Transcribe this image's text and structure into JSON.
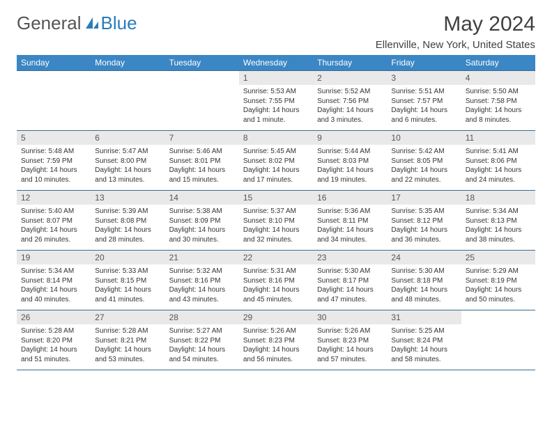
{
  "brand": {
    "general": "General",
    "blue": "Blue"
  },
  "title": "May 2024",
  "location": "Ellenville, New York, United States",
  "colors": {
    "header_bg": "#3b86c4",
    "header_text": "#ffffff",
    "daynum_bg": "#e9e9e9",
    "row_border": "#3b6a8f",
    "logo_blue": "#2a7cb8",
    "body_bg": "#ffffff"
  },
  "weekday_labels": [
    "Sunday",
    "Monday",
    "Tuesday",
    "Wednesday",
    "Thursday",
    "Friday",
    "Saturday"
  ],
  "weeks": [
    [
      null,
      null,
      null,
      {
        "n": "1",
        "sr": "5:53 AM",
        "ss": "7:55 PM",
        "dl": "14 hours and 1 minute."
      },
      {
        "n": "2",
        "sr": "5:52 AM",
        "ss": "7:56 PM",
        "dl": "14 hours and 3 minutes."
      },
      {
        "n": "3",
        "sr": "5:51 AM",
        "ss": "7:57 PM",
        "dl": "14 hours and 6 minutes."
      },
      {
        "n": "4",
        "sr": "5:50 AM",
        "ss": "7:58 PM",
        "dl": "14 hours and 8 minutes."
      }
    ],
    [
      {
        "n": "5",
        "sr": "5:48 AM",
        "ss": "7:59 PM",
        "dl": "14 hours and 10 minutes."
      },
      {
        "n": "6",
        "sr": "5:47 AM",
        "ss": "8:00 PM",
        "dl": "14 hours and 13 minutes."
      },
      {
        "n": "7",
        "sr": "5:46 AM",
        "ss": "8:01 PM",
        "dl": "14 hours and 15 minutes."
      },
      {
        "n": "8",
        "sr": "5:45 AM",
        "ss": "8:02 PM",
        "dl": "14 hours and 17 minutes."
      },
      {
        "n": "9",
        "sr": "5:44 AM",
        "ss": "8:03 PM",
        "dl": "14 hours and 19 minutes."
      },
      {
        "n": "10",
        "sr": "5:42 AM",
        "ss": "8:05 PM",
        "dl": "14 hours and 22 minutes."
      },
      {
        "n": "11",
        "sr": "5:41 AM",
        "ss": "8:06 PM",
        "dl": "14 hours and 24 minutes."
      }
    ],
    [
      {
        "n": "12",
        "sr": "5:40 AM",
        "ss": "8:07 PM",
        "dl": "14 hours and 26 minutes."
      },
      {
        "n": "13",
        "sr": "5:39 AM",
        "ss": "8:08 PM",
        "dl": "14 hours and 28 minutes."
      },
      {
        "n": "14",
        "sr": "5:38 AM",
        "ss": "8:09 PM",
        "dl": "14 hours and 30 minutes."
      },
      {
        "n": "15",
        "sr": "5:37 AM",
        "ss": "8:10 PM",
        "dl": "14 hours and 32 minutes."
      },
      {
        "n": "16",
        "sr": "5:36 AM",
        "ss": "8:11 PM",
        "dl": "14 hours and 34 minutes."
      },
      {
        "n": "17",
        "sr": "5:35 AM",
        "ss": "8:12 PM",
        "dl": "14 hours and 36 minutes."
      },
      {
        "n": "18",
        "sr": "5:34 AM",
        "ss": "8:13 PM",
        "dl": "14 hours and 38 minutes."
      }
    ],
    [
      {
        "n": "19",
        "sr": "5:34 AM",
        "ss": "8:14 PM",
        "dl": "14 hours and 40 minutes."
      },
      {
        "n": "20",
        "sr": "5:33 AM",
        "ss": "8:15 PM",
        "dl": "14 hours and 41 minutes."
      },
      {
        "n": "21",
        "sr": "5:32 AM",
        "ss": "8:16 PM",
        "dl": "14 hours and 43 minutes."
      },
      {
        "n": "22",
        "sr": "5:31 AM",
        "ss": "8:16 PM",
        "dl": "14 hours and 45 minutes."
      },
      {
        "n": "23",
        "sr": "5:30 AM",
        "ss": "8:17 PM",
        "dl": "14 hours and 47 minutes."
      },
      {
        "n": "24",
        "sr": "5:30 AM",
        "ss": "8:18 PM",
        "dl": "14 hours and 48 minutes."
      },
      {
        "n": "25",
        "sr": "5:29 AM",
        "ss": "8:19 PM",
        "dl": "14 hours and 50 minutes."
      }
    ],
    [
      {
        "n": "26",
        "sr": "5:28 AM",
        "ss": "8:20 PM",
        "dl": "14 hours and 51 minutes."
      },
      {
        "n": "27",
        "sr": "5:28 AM",
        "ss": "8:21 PM",
        "dl": "14 hours and 53 minutes."
      },
      {
        "n": "28",
        "sr": "5:27 AM",
        "ss": "8:22 PM",
        "dl": "14 hours and 54 minutes."
      },
      {
        "n": "29",
        "sr": "5:26 AM",
        "ss": "8:23 PM",
        "dl": "14 hours and 56 minutes."
      },
      {
        "n": "30",
        "sr": "5:26 AM",
        "ss": "8:23 PM",
        "dl": "14 hours and 57 minutes."
      },
      {
        "n": "31",
        "sr": "5:25 AM",
        "ss": "8:24 PM",
        "dl": "14 hours and 58 minutes."
      },
      null
    ]
  ],
  "labels": {
    "sunrise": "Sunrise:",
    "sunset": "Sunset:",
    "daylight": "Daylight:"
  }
}
